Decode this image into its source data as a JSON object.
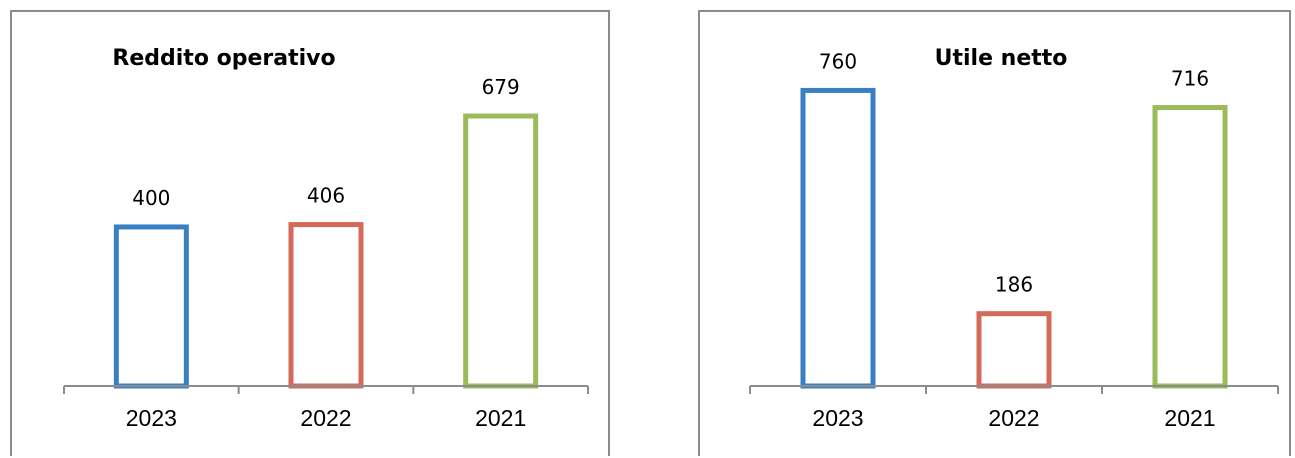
{
  "colors": [
    "#3a7fc1",
    "#d46a5a",
    "#9bbb59"
  ],
  "axis_color": "#8c8c8c",
  "chart_data": [
    {
      "type": "bar",
      "title": "Reddito operativo",
      "categories": [
        "2023",
        "2022",
        "2021"
      ],
      "values": [
        400,
        406,
        679
      ],
      "value_labels": [
        "400",
        "406",
        "679"
      ],
      "ylim": [
        0,
        800
      ],
      "grid": false,
      "bar_style": "outline"
    },
    {
      "type": "bar",
      "title": "Utile netto",
      "categories": [
        "2023",
        "2022",
        "2021"
      ],
      "values": [
        760,
        186,
        716
      ],
      "value_labels": [
        "760",
        "186",
        "716"
      ],
      "ylim": [
        0,
        800
      ],
      "grid": false,
      "bar_style": "outline"
    }
  ]
}
